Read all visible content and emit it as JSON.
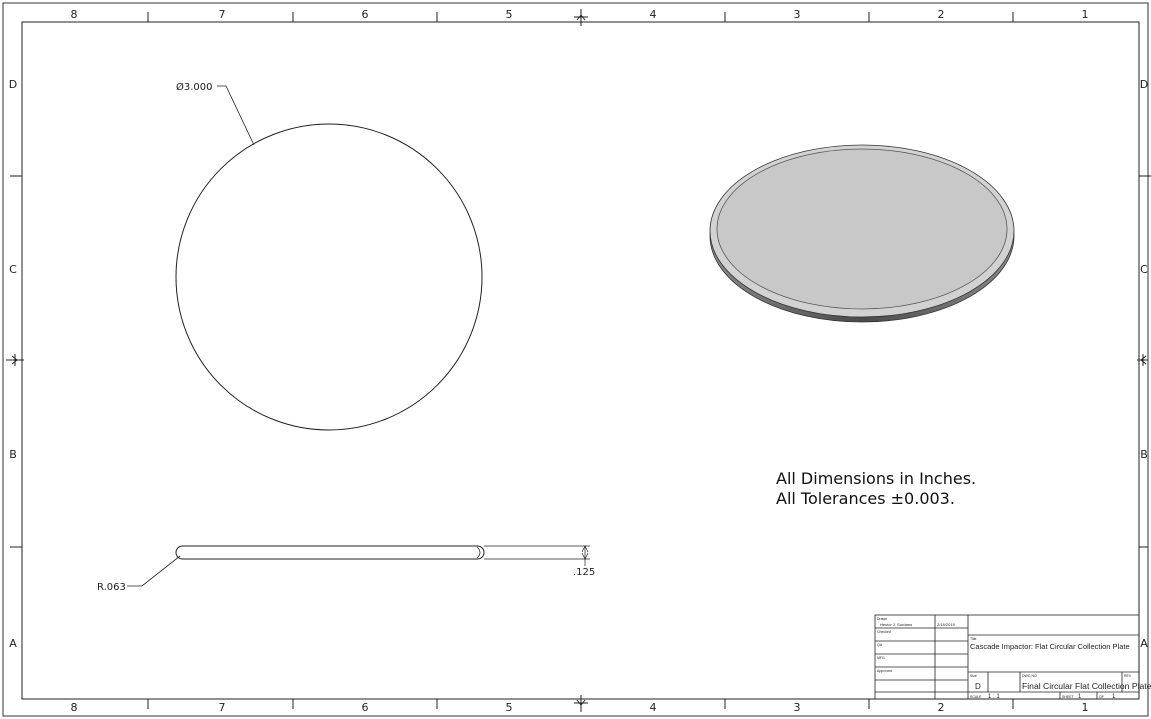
{
  "border": {
    "columns": [
      "8",
      "7",
      "6",
      "5",
      "4",
      "3",
      "2",
      "1"
    ],
    "rows": [
      "D",
      "C",
      "B",
      "A"
    ]
  },
  "dimensions": {
    "diameter": "Ø3.000",
    "radius": "R.063",
    "thickness": ".125"
  },
  "notes": {
    "line1": "All Dimensions in Inches.",
    "line2": "All Tolerances ±0.003."
  },
  "title_block": {
    "drawn_label": "Drawn",
    "drawn_by": "Hector J. Sordano",
    "drawn_date": "2/18/2019",
    "checked_label": "Checked",
    "qa_label": "QA",
    "mfg_label": "MFG",
    "approved_label": "Approved",
    "title_label": "Title",
    "title": "Cascade Impactor: Flat Circular Collection Plate",
    "size_label": "Size",
    "size": "D",
    "dwg_label": "DWG NO",
    "dwg_no": "Final Circular Flat Collection Plate",
    "rev_label": "REV",
    "scale_label": "SCALE",
    "scale": "1 : 1",
    "sheet_label": "SHEET",
    "sheet": "1",
    "of_label": "OF",
    "of": "1"
  },
  "colors": {
    "line": "#222222",
    "iso_top": "#c8c8c8",
    "iso_edge": "#5a5a5a"
  }
}
